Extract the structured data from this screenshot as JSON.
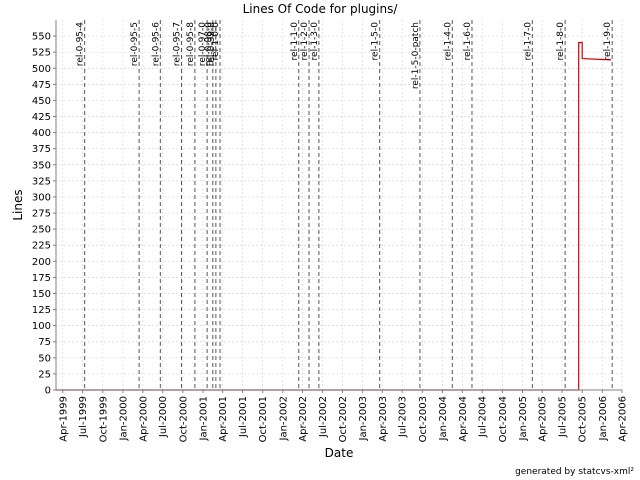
{
  "chart_data": {
    "type": "line",
    "title": "Lines Of Code for plugins/",
    "xlabel": "Date",
    "ylabel": "Lines",
    "xlim": [
      "1999-03-01",
      "2006-04-01"
    ],
    "ylim": [
      0,
      575
    ],
    "x_ticks": [
      "Apr-1999",
      "Jul-1999",
      "Oct-1999",
      "Jan-2000",
      "Apr-2000",
      "Jul-2000",
      "Oct-2000",
      "Jan-2001",
      "Apr-2001",
      "Jul-2001",
      "Oct-2001",
      "Jan-2002",
      "Apr-2002",
      "Jul-2002",
      "Oct-2002",
      "Jan-2003",
      "Apr-2003",
      "Jul-2003",
      "Oct-2003",
      "Jan-2004",
      "Apr-2004",
      "Jul-2004",
      "Oct-2004",
      "Jan-2005",
      "Apr-2005",
      "Jul-2005",
      "Oct-2005",
      "Jan-2006",
      "Apr-2006"
    ],
    "y_ticks": [
      0,
      25,
      50,
      75,
      100,
      125,
      150,
      175,
      200,
      225,
      250,
      275,
      300,
      325,
      350,
      375,
      400,
      425,
      450,
      475,
      500,
      525,
      550
    ],
    "grid": true,
    "series": [
      {
        "color": "#cc0000",
        "points": [
          {
            "x": "1999-03-01",
            "y": 0
          },
          {
            "x": "2005-09-15",
            "y": 0
          },
          {
            "x": "2005-09-15",
            "y": 540
          },
          {
            "x": "2005-10-01",
            "y": 540
          },
          {
            "x": "2005-10-01",
            "y": 515
          },
          {
            "x": "2006-02-10",
            "y": 513
          }
        ]
      }
    ],
    "tags": [
      {
        "label": "rel-0-95-4",
        "date": "1999-07-10"
      },
      {
        "label": "rel-0-95-5",
        "date": "2000-03-15"
      },
      {
        "label": "rel-0-95-6",
        "date": "2000-06-20"
      },
      {
        "label": "rel-0-95-7",
        "date": "2000-09-25"
      },
      {
        "label": "rel-0-95-8",
        "date": "2000-11-25"
      },
      {
        "label": "rel-0-97-0",
        "date": "2001-01-20"
      },
      {
        "label": "rel-0-98-0",
        "date": "2001-02-15"
      },
      {
        "label": "rel-0-99-0",
        "date": "2001-03-01"
      },
      {
        "label": "rel-1-0-0",
        "date": "2001-03-20"
      },
      {
        "label": "rel-1-1-0",
        "date": "2002-03-15"
      },
      {
        "label": "rel-1-2-0",
        "date": "2002-05-01"
      },
      {
        "label": "rel-1-3-0",
        "date": "2002-06-15"
      },
      {
        "label": "rel-1-5-0",
        "date": "2003-03-20"
      },
      {
        "label": "rel-1-5-0-patch",
        "date": "2003-09-20"
      },
      {
        "label": "rel-1-4-0",
        "date": "2004-02-15"
      },
      {
        "label": "rel-1-6-0",
        "date": "2004-05-15"
      },
      {
        "label": "rel-1-7-0",
        "date": "2005-02-15"
      },
      {
        "label": "rel-1-8-0",
        "date": "2005-07-15"
      },
      {
        "label": "rel-1-9-0",
        "date": "2006-02-15"
      }
    ]
  },
  "footer": "generated by statcvs-xml²"
}
